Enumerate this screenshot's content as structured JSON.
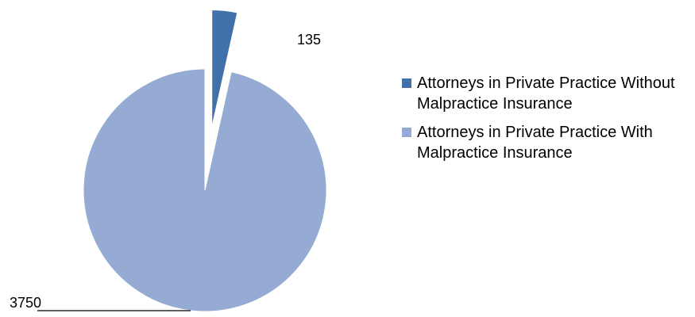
{
  "chart_data": {
    "type": "pie",
    "categories": [
      "Attorneys in Private Practice Without Malpractice Insurance",
      "Attorneys in Private Practice With Malpractice Insurance"
    ],
    "values": [
      135,
      3750
    ],
    "colors": [
      "#4071ab",
      "#95abd4"
    ],
    "legend": "right"
  }
}
